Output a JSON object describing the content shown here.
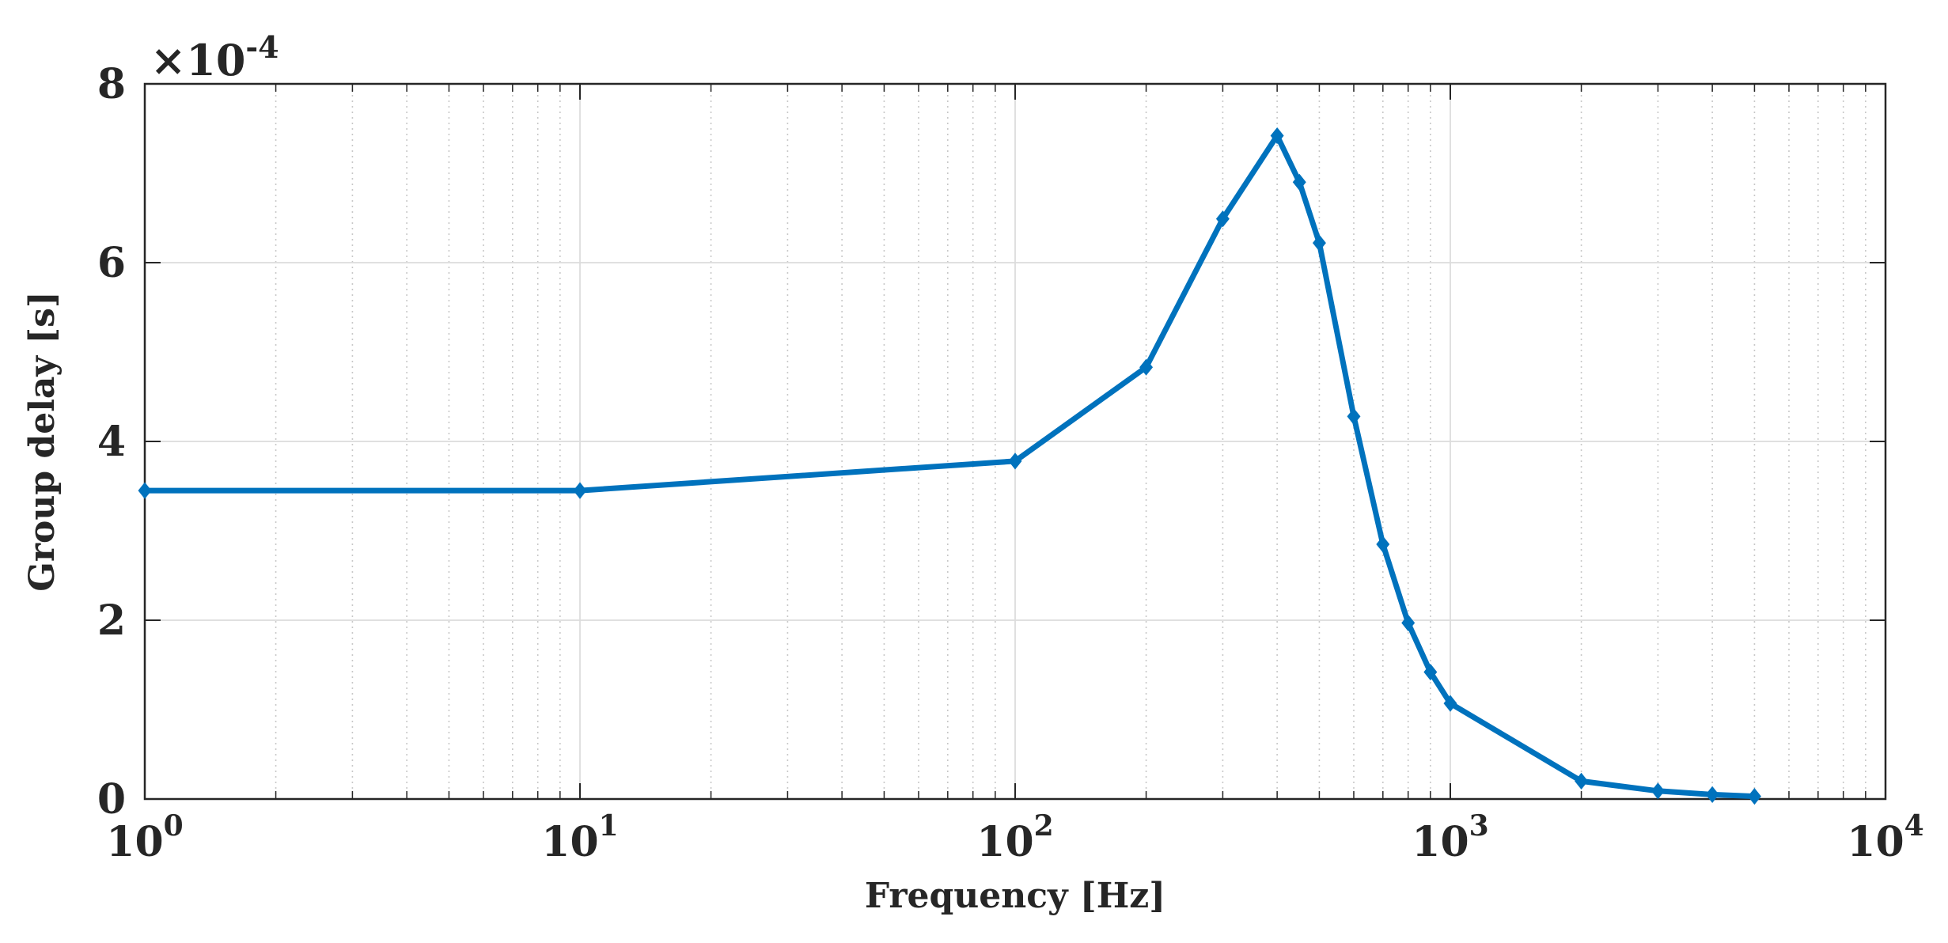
{
  "chart_data": {
    "type": "line",
    "xlabel": "Frequency [Hz]",
    "ylabel": "Group delay [s]",
    "x_scale": "log",
    "xlim": [
      1,
      10000
    ],
    "ylim": [
      0,
      8
    ],
    "y_multiplier": {
      "base": "×10",
      "exponent": "-4"
    },
    "x_ticks": [
      {
        "base": "10",
        "exp": "0",
        "value": 1
      },
      {
        "base": "10",
        "exp": "1",
        "value": 10
      },
      {
        "base": "10",
        "exp": "2",
        "value": 100
      },
      {
        "base": "10",
        "exp": "3",
        "value": 1000
      },
      {
        "base": "10",
        "exp": "4",
        "value": 10000
      }
    ],
    "y_ticks": [
      "0",
      "2",
      "4",
      "6",
      "8"
    ],
    "grid": true,
    "minor_grid_x": true,
    "series": [
      {
        "color": "#0072BD",
        "marker": "diamond",
        "x": [
          1,
          10,
          100,
          200,
          300,
          400,
          450,
          500,
          600,
          700,
          800,
          900,
          1000,
          2000,
          3000,
          4000,
          5000
        ],
        "y": [
          3.45,
          3.45,
          3.78,
          4.83,
          6.49,
          7.42,
          6.9,
          6.22,
          4.28,
          2.85,
          1.97,
          1.42,
          1.07,
          0.2,
          0.09,
          0.05,
          0.03
        ]
      }
    ]
  }
}
